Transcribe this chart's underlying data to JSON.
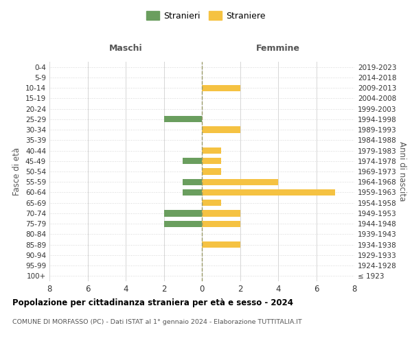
{
  "age_groups": [
    "100+",
    "95-99",
    "90-94",
    "85-89",
    "80-84",
    "75-79",
    "70-74",
    "65-69",
    "60-64",
    "55-59",
    "50-54",
    "45-49",
    "40-44",
    "35-39",
    "30-34",
    "25-29",
    "20-24",
    "15-19",
    "10-14",
    "5-9",
    "0-4"
  ],
  "birth_years": [
    "≤ 1923",
    "1924-1928",
    "1929-1933",
    "1934-1938",
    "1939-1943",
    "1944-1948",
    "1949-1953",
    "1954-1958",
    "1959-1963",
    "1964-1968",
    "1969-1973",
    "1974-1978",
    "1979-1983",
    "1984-1988",
    "1989-1993",
    "1994-1998",
    "1999-2003",
    "2004-2008",
    "2009-2013",
    "2014-2018",
    "2019-2023"
  ],
  "maschi_stranieri": [
    0,
    0,
    0,
    0,
    0,
    2,
    2,
    0,
    1,
    1,
    0,
    1,
    0,
    0,
    0,
    2,
    0,
    0,
    0,
    0,
    0
  ],
  "femmine_straniere": [
    0,
    0,
    0,
    2,
    0,
    2,
    2,
    1,
    7,
    4,
    1,
    1,
    1,
    0,
    2,
    0,
    0,
    0,
    2,
    0,
    0
  ],
  "color_maschi": "#6a9e5e",
  "color_femmine": "#f5c242",
  "xlim": 8,
  "title": "Popolazione per cittadinanza straniera per età e sesso - 2024",
  "subtitle": "COMUNE DI MORFASSO (PC) - Dati ISTAT al 1° gennaio 2024 - Elaborazione TUTTITALIA.IT",
  "ylabel_left": "Fasce di età",
  "ylabel_right": "Anni di nascita",
  "label_maschi": "Maschi",
  "label_femmine": "Femmine",
  "legend_stranieri": "Stranieri",
  "legend_straniere": "Straniere",
  "background_color": "#ffffff",
  "grid_color": "#cccccc"
}
